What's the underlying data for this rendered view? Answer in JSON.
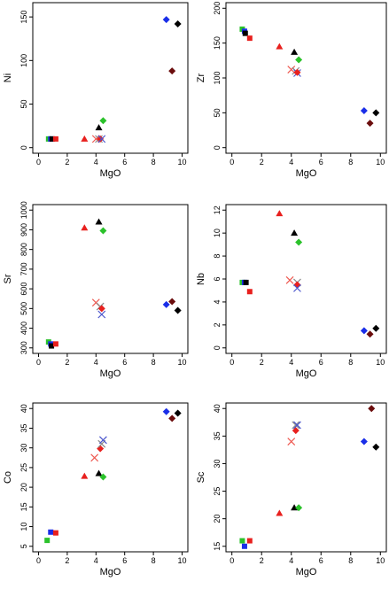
{
  "symbols": {
    "red_triangle": {
      "color": "#e8201e",
      "shape": "triangle-up"
    },
    "black_triangle": {
      "color": "#000000",
      "shape": "triangle-up"
    },
    "green_diamond": {
      "color": "#2bc22b",
      "shape": "diamond"
    },
    "red_x": {
      "color": "#ee5a52",
      "shape": "cross"
    },
    "gray_x": {
      "color": "#8a8a8a",
      "shape": "cross"
    },
    "blue_x": {
      "color": "#4a55cc",
      "shape": "cross"
    },
    "red_diamond": {
      "color": "#e8201e",
      "shape": "diamond"
    },
    "darkred_diamond": {
      "color": "#6b0d0d",
      "shape": "diamond"
    },
    "black_diamond": {
      "color": "#000000",
      "shape": "diamond"
    },
    "blue_diamond": {
      "color": "#1a2ee8",
      "shape": "diamond"
    },
    "green_square": {
      "color": "#2bc22b",
      "shape": "square"
    },
    "blue_square": {
      "color": "#1a2ee8",
      "shape": "square"
    },
    "black_square": {
      "color": "#000000",
      "shape": "square"
    },
    "red_square": {
      "color": "#e8201e",
      "shape": "square"
    }
  },
  "chart_data": [
    {
      "type": "scatter",
      "title": "",
      "xlabel": "MgO",
      "ylabel": "Ni",
      "xlim": [
        0,
        10
      ],
      "ylim": [
        0,
        160
      ],
      "xticks": [
        0,
        2,
        4,
        6,
        8,
        10
      ],
      "yticks": [
        0,
        50,
        100,
        150
      ],
      "points": [
        {
          "x": 0.7,
          "y": 10,
          "s": "green_square"
        },
        {
          "x": 0.85,
          "y": 10,
          "s": "blue_square"
        },
        {
          "x": 0.95,
          "y": 10,
          "s": "black_square"
        },
        {
          "x": 1.2,
          "y": 10,
          "s": "red_square"
        },
        {
          "x": 3.2,
          "y": 10,
          "s": "red_triangle"
        },
        {
          "x": 4.0,
          "y": 10,
          "s": "red_x"
        },
        {
          "x": 4.2,
          "y": 10,
          "s": "gray_x"
        },
        {
          "x": 4.3,
          "y": 10,
          "s": "red_diamond"
        },
        {
          "x": 4.4,
          "y": 10,
          "s": "blue_x"
        },
        {
          "x": 4.2,
          "y": 23,
          "s": "black_triangle"
        },
        {
          "x": 4.5,
          "y": 31,
          "s": "green_diamond"
        },
        {
          "x": 8.9,
          "y": 147,
          "s": "blue_diamond"
        },
        {
          "x": 9.7,
          "y": 142,
          "s": "black_diamond"
        },
        {
          "x": 9.3,
          "y": 88,
          "s": "darkred_diamond"
        }
      ]
    },
    {
      "type": "scatter",
      "title": "",
      "xlabel": "MgO",
      "ylabel": "Zr",
      "xlim": [
        0,
        10
      ],
      "ylim": [
        0,
        200
      ],
      "xticks": [
        0,
        2,
        4,
        6,
        8,
        10
      ],
      "yticks": [
        0,
        50,
        100,
        150,
        200
      ],
      "points": [
        {
          "x": 0.7,
          "y": 170,
          "s": "green_square"
        },
        {
          "x": 0.85,
          "y": 167,
          "s": "blue_square"
        },
        {
          "x": 0.9,
          "y": 164,
          "s": "black_square"
        },
        {
          "x": 1.2,
          "y": 157,
          "s": "red_square"
        },
        {
          "x": 3.2,
          "y": 145,
          "s": "red_triangle"
        },
        {
          "x": 4.2,
          "y": 137,
          "s": "black_triangle"
        },
        {
          "x": 4.5,
          "y": 126,
          "s": "green_diamond"
        },
        {
          "x": 4.0,
          "y": 112,
          "s": "red_x"
        },
        {
          "x": 4.3,
          "y": 110,
          "s": "gray_x"
        },
        {
          "x": 4.4,
          "y": 107,
          "s": "blue_x"
        },
        {
          "x": 4.4,
          "y": 108,
          "s": "red_diamond"
        },
        {
          "x": 8.9,
          "y": 53,
          "s": "blue_diamond"
        },
        {
          "x": 9.7,
          "y": 50,
          "s": "black_diamond"
        },
        {
          "x": 9.3,
          "y": 35,
          "s": "darkred_diamond"
        }
      ]
    },
    {
      "type": "scatter",
      "title": "",
      "xlabel": "MgO",
      "ylabel": "Sr",
      "xlim": [
        0,
        10
      ],
      "ylim": [
        300,
        1000
      ],
      "xticks": [
        0,
        2,
        4,
        6,
        8,
        10
      ],
      "yticks": [
        300,
        400,
        500,
        600,
        700,
        800,
        900,
        1000
      ],
      "points": [
        {
          "x": 0.7,
          "y": 330,
          "s": "green_square"
        },
        {
          "x": 0.85,
          "y": 320,
          "s": "blue_square"
        },
        {
          "x": 0.9,
          "y": 310,
          "s": "black_square"
        },
        {
          "x": 1.2,
          "y": 320,
          "s": "red_square"
        },
        {
          "x": 3.2,
          "y": 910,
          "s": "red_triangle"
        },
        {
          "x": 4.2,
          "y": 940,
          "s": "black_triangle"
        },
        {
          "x": 4.5,
          "y": 895,
          "s": "green_diamond"
        },
        {
          "x": 4.0,
          "y": 530,
          "s": "red_x"
        },
        {
          "x": 4.3,
          "y": 510,
          "s": "gray_x"
        },
        {
          "x": 4.4,
          "y": 500,
          "s": "red_diamond"
        },
        {
          "x": 4.4,
          "y": 470,
          "s": "blue_x"
        },
        {
          "x": 8.9,
          "y": 520,
          "s": "blue_diamond"
        },
        {
          "x": 9.3,
          "y": 535,
          "s": "darkred_diamond"
        },
        {
          "x": 9.7,
          "y": 490,
          "s": "black_diamond"
        }
      ]
    },
    {
      "type": "scatter",
      "title": "",
      "xlabel": "MgO",
      "ylabel": "Nb",
      "xlim": [
        0,
        10
      ],
      "ylim": [
        0,
        12
      ],
      "xticks": [
        0,
        2,
        4,
        6,
        8,
        10
      ],
      "yticks": [
        0,
        2,
        4,
        6,
        8,
        10,
        12
      ],
      "points": [
        {
          "x": 0.7,
          "y": 5.7,
          "s": "green_square"
        },
        {
          "x": 0.85,
          "y": 5.7,
          "s": "blue_square"
        },
        {
          "x": 0.95,
          "y": 5.7,
          "s": "black_square"
        },
        {
          "x": 1.2,
          "y": 4.9,
          "s": "red_square"
        },
        {
          "x": 3.2,
          "y": 11.7,
          "s": "red_triangle"
        },
        {
          "x": 4.2,
          "y": 10.0,
          "s": "black_triangle"
        },
        {
          "x": 4.5,
          "y": 9.2,
          "s": "green_diamond"
        },
        {
          "x": 3.9,
          "y": 5.9,
          "s": "red_x"
        },
        {
          "x": 4.4,
          "y": 5.7,
          "s": "gray_x"
        },
        {
          "x": 4.4,
          "y": 5.5,
          "s": "red_diamond"
        },
        {
          "x": 4.4,
          "y": 5.2,
          "s": "blue_x"
        },
        {
          "x": 8.9,
          "y": 1.5,
          "s": "blue_diamond"
        },
        {
          "x": 9.3,
          "y": 1.2,
          "s": "darkred_diamond"
        },
        {
          "x": 9.7,
          "y": 1.7,
          "s": "black_diamond"
        }
      ]
    },
    {
      "type": "scatter",
      "title": "",
      "xlabel": "MgO",
      "ylabel": "Co",
      "xlim": [
        0,
        10
      ],
      "ylim": [
        5,
        40
      ],
      "xticks": [
        0,
        2,
        4,
        6,
        8,
        10
      ],
      "yticks": [
        5,
        10,
        15,
        20,
        25,
        30,
        35,
        40
      ],
      "points": [
        {
          "x": 0.6,
          "y": 6.5,
          "s": "green_square"
        },
        {
          "x": 0.85,
          "y": 8.6,
          "s": "blue_square"
        },
        {
          "x": 1.2,
          "y": 8.4,
          "s": "red_square"
        },
        {
          "x": 3.2,
          "y": 22.8,
          "s": "red_triangle"
        },
        {
          "x": 4.2,
          "y": 23.5,
          "s": "black_triangle"
        },
        {
          "x": 4.5,
          "y": 22.6,
          "s": "green_diamond"
        },
        {
          "x": 3.9,
          "y": 27.5,
          "s": "red_x"
        },
        {
          "x": 4.3,
          "y": 29.8,
          "s": "red_diamond"
        },
        {
          "x": 4.4,
          "y": 31.0,
          "s": "gray_x"
        },
        {
          "x": 4.5,
          "y": 32.0,
          "s": "blue_x"
        },
        {
          "x": 8.9,
          "y": 39.2,
          "s": "blue_diamond"
        },
        {
          "x": 9.3,
          "y": 37.5,
          "s": "darkred_diamond"
        },
        {
          "x": 9.7,
          "y": 38.8,
          "s": "black_diamond"
        }
      ]
    },
    {
      "type": "scatter",
      "title": "",
      "xlabel": "MgO",
      "ylabel": "Sc",
      "xlim": [
        0,
        10
      ],
      "ylim": [
        15,
        40
      ],
      "xticks": [
        0,
        2,
        4,
        6,
        8,
        10
      ],
      "yticks": [
        15,
        20,
        25,
        30,
        35,
        40
      ],
      "points": [
        {
          "x": 0.7,
          "y": 16,
          "s": "green_square"
        },
        {
          "x": 0.85,
          "y": 15,
          "s": "blue_square"
        },
        {
          "x": 1.2,
          "y": 16,
          "s": "red_square"
        },
        {
          "x": 3.2,
          "y": 21,
          "s": "red_triangle"
        },
        {
          "x": 4.2,
          "y": 22,
          "s": "black_triangle"
        },
        {
          "x": 4.5,
          "y": 22,
          "s": "green_diamond"
        },
        {
          "x": 4.0,
          "y": 34,
          "s": "red_x"
        },
        {
          "x": 4.3,
          "y": 36,
          "s": "red_diamond"
        },
        {
          "x": 4.3,
          "y": 37,
          "s": "gray_x"
        },
        {
          "x": 4.4,
          "y": 37,
          "s": "blue_x"
        },
        {
          "x": 8.9,
          "y": 34,
          "s": "blue_diamond"
        },
        {
          "x": 9.7,
          "y": 33,
          "s": "black_diamond"
        },
        {
          "x": 9.4,
          "y": 40,
          "s": "darkred_diamond"
        }
      ]
    }
  ]
}
